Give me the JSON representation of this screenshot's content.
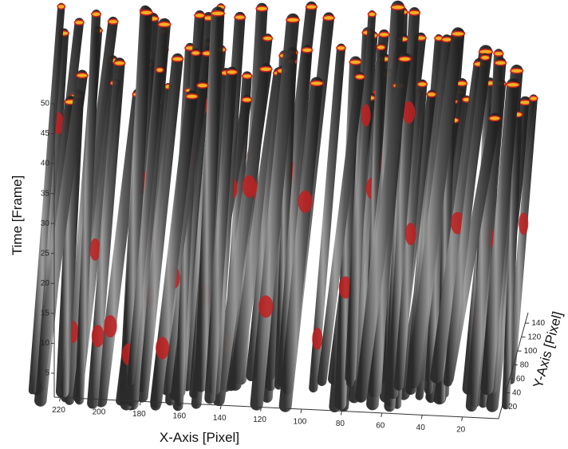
{
  "chart_data": {
    "type": "tubes3d",
    "x_label": "X-Axis [Pixel]",
    "y_label": "Y-Axis [Pixel]",
    "z_label": "Time [Frame]",
    "xlim": [
      223,
      2
    ],
    "xticks": [
      220,
      200,
      180,
      160,
      140,
      120,
      100,
      80,
      60,
      40,
      20
    ],
    "ylim": [
      3,
      155
    ],
    "yticks": [
      20,
      40,
      60,
      80,
      100,
      120,
      140
    ],
    "zlim": [
      1,
      50
    ],
    "zticks": [
      5,
      10,
      15,
      20,
      25,
      30,
      35,
      40,
      45,
      50
    ]
  }
}
